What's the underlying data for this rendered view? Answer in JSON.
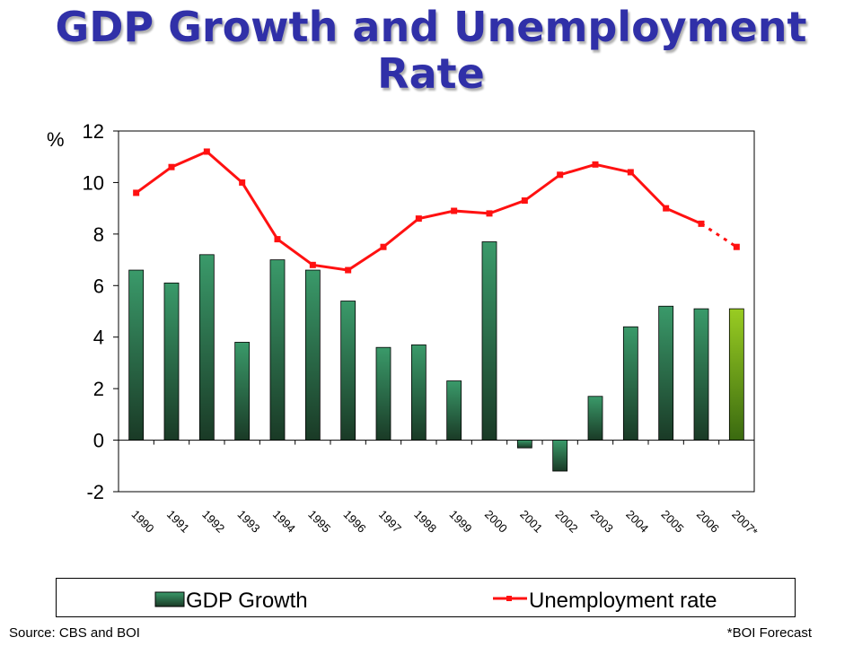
{
  "title_line1": "GDP Growth and Unemployment",
  "title_line2": "Rate",
  "unit_label": "%",
  "footer": {
    "source": "Source: CBS and BOI",
    "note": "*BOI Forecast"
  },
  "legend": {
    "gdp": "GDP Growth",
    "unemployment": "Unemployment rate"
  },
  "colors": {
    "bar_top": "#3a9a6a",
    "bar_bottom": "#1a3a26",
    "forecast_top": "#99cc22",
    "forecast_bottom": "#3a6a10",
    "line": "#ff1111",
    "title": "#3030a8"
  },
  "chart_data": {
    "type": "bar",
    "categories": [
      "1990",
      "1991",
      "1992",
      "1993",
      "1994",
      "1995",
      "1996",
      "1997",
      "1998",
      "1999",
      "2000",
      "2001",
      "2002",
      "2003",
      "2004",
      "2005",
      "2006",
      "2007*"
    ],
    "series": [
      {
        "name": "GDP Growth",
        "type": "bar",
        "values": [
          6.6,
          6.1,
          7.2,
          3.8,
          7.0,
          6.6,
          5.4,
          3.6,
          3.7,
          2.3,
          7.7,
          -0.3,
          -1.2,
          1.7,
          4.4,
          5.2,
          5.1,
          5.1
        ]
      },
      {
        "name": "Unemployment rate",
        "type": "line",
        "values": [
          9.6,
          10.6,
          11.2,
          10.0,
          7.8,
          6.8,
          6.6,
          7.5,
          8.6,
          8.9,
          8.8,
          9.3,
          10.3,
          10.7,
          10.4,
          9.0,
          8.4,
          7.5
        ]
      }
    ],
    "forecast_category": "2007*",
    "ylim": [
      -2,
      12
    ],
    "yticks": [
      -2,
      0,
      2,
      4,
      6,
      8,
      10,
      12
    ]
  }
}
